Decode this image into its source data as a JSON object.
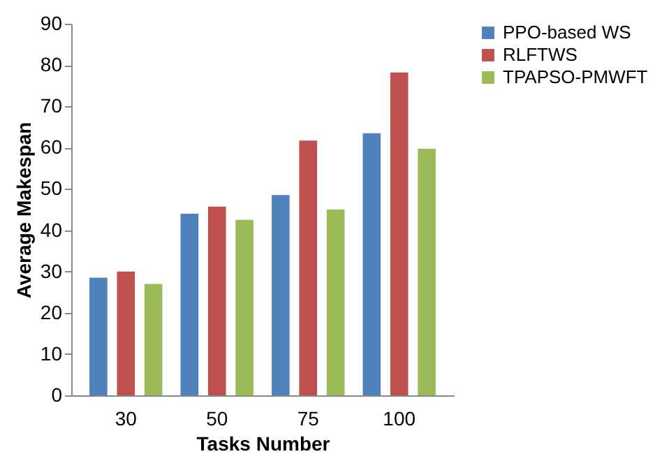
{
  "chart_data": {
    "type": "bar",
    "xlabel": "Tasks Number",
    "ylabel": "Average Makespan",
    "categories": [
      "30",
      "50",
      "75",
      "100"
    ],
    "series": [
      {
        "name": "PPO-based WS",
        "color": "#4f81bd",
        "values": [
          28.5,
          44,
          48.5,
          63.5
        ]
      },
      {
        "name": "RLFTWS",
        "color": "#c0504d",
        "values": [
          30,
          45.7,
          61.7,
          78.2
        ]
      },
      {
        "name": "TPAPSO-PMWFT",
        "color": "#9bbb59",
        "values": [
          27,
          42.5,
          45,
          59.7
        ]
      }
    ],
    "ylim": [
      0,
      90
    ],
    "yticks": [
      0,
      10,
      20,
      30,
      40,
      50,
      60,
      70,
      80,
      90
    ],
    "grid": false,
    "legend": "right"
  }
}
